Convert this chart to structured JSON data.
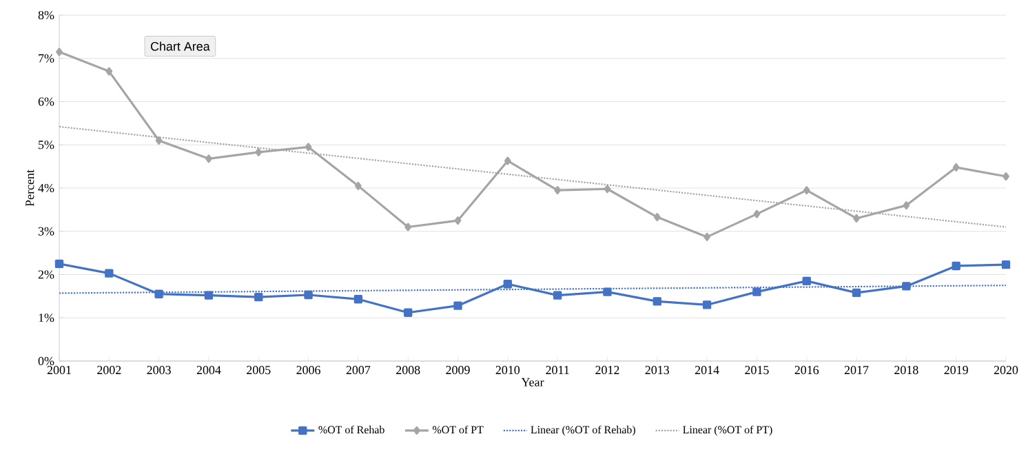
{
  "chart_data": {
    "type": "line",
    "xlabel": "Year",
    "ylabel": "Percent",
    "xlim": [
      2001,
      2020
    ],
    "xticks": [
      2001,
      2002,
      2003,
      2004,
      2005,
      2006,
      2007,
      2008,
      2009,
      2010,
      2011,
      2012,
      2013,
      2014,
      2015,
      2016,
      2017,
      2018,
      2019,
      2020
    ],
    "ylim": [
      0,
      8
    ],
    "yticks": [
      {
        "value": 0,
        "label": "0%"
      },
      {
        "value": 1,
        "label": "1%"
      },
      {
        "value": 2,
        "label": "2%"
      },
      {
        "value": 3,
        "label": "3%"
      },
      {
        "value": 4,
        "label": "4%"
      },
      {
        "value": 5,
        "label": "5%"
      },
      {
        "value": 6,
        "label": "6%"
      },
      {
        "value": 7,
        "label": "7%"
      },
      {
        "value": 8,
        "label": "8%"
      }
    ],
    "grid": "y",
    "legend": "bottom",
    "annotations": [
      "Chart Area"
    ],
    "series": [
      {
        "name": "%OT of Rehab",
        "color": "#4472c4",
        "marker": "square",
        "line_style": "solid",
        "x": [
          2001,
          2002,
          2003,
          2004,
          2005,
          2006,
          2007,
          2008,
          2009,
          2010,
          2011,
          2012,
          2013,
          2014,
          2015,
          2016,
          2017,
          2018,
          2019,
          2020
        ],
        "values": [
          2.25,
          2.03,
          1.55,
          1.52,
          1.48,
          1.53,
          1.43,
          1.12,
          1.28,
          1.78,
          1.52,
          1.6,
          1.38,
          1.3,
          1.6,
          1.85,
          1.58,
          1.73,
          2.2,
          2.23
        ]
      },
      {
        "name": "%OT of PT",
        "color": "#a5a5a5",
        "marker": "diamond",
        "line_style": "solid",
        "x": [
          2001,
          2002,
          2003,
          2004,
          2005,
          2006,
          2007,
          2008,
          2009,
          2010,
          2011,
          2012,
          2013,
          2014,
          2015,
          2016,
          2017,
          2018,
          2019,
          2020
        ],
        "values": [
          7.15,
          6.7,
          5.1,
          4.68,
          4.83,
          4.95,
          4.05,
          3.1,
          3.25,
          4.63,
          3.95,
          3.98,
          3.33,
          2.87,
          3.4,
          3.95,
          3.3,
          3.6,
          4.48,
          4.27
        ]
      },
      {
        "name": "Linear (%OT of Rehab)",
        "color": "#4472c4",
        "marker": "none",
        "line_style": "dotted",
        "x": [
          2001,
          2020
        ],
        "values": [
          1.57,
          1.75
        ]
      },
      {
        "name": "Linear (%OT of PT)",
        "color": "#a5a5a5",
        "marker": "none",
        "line_style": "dotted",
        "x": [
          2001,
          2020
        ],
        "values": [
          5.42,
          3.1
        ]
      }
    ]
  }
}
